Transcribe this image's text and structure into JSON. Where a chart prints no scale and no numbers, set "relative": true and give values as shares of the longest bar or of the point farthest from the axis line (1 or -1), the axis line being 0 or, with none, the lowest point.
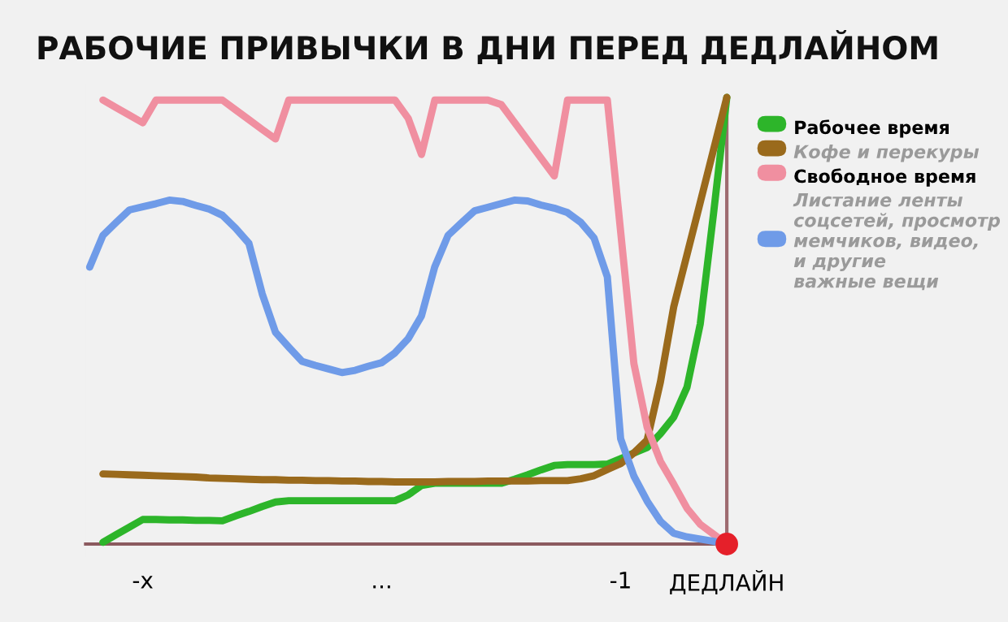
{
  "chart_data": {
    "type": "line",
    "title": "РАБОЧИЕ ПРИВЫЧКИ В ДНИ ПЕРЕД ДЕДЛАЙНОМ",
    "relative": true,
    "categories": [
      null,
      null,
      null,
      null,
      "-x",
      null,
      null,
      null,
      null,
      null,
      null,
      null,
      null,
      null,
      null,
      null,
      null,
      null,
      null,
      null,
      null,
      null,
      "...",
      null,
      null,
      null,
      null,
      null,
      null,
      null,
      null,
      null,
      null,
      null,
      null,
      null,
      null,
      null,
      null,
      null,
      "-1",
      null,
      null,
      null,
      null,
      null,
      null,
      null,
      "ДЕДЛАЙН"
    ],
    "ref_lines": [
      {
        "axis": "x",
        "value": "ДЕДЛАЙН",
        "label": null,
        "color": "#9e6b70"
      }
    ],
    "legend": "right",
    "grid": false,
    "marker": "none",
    "line_style": "solid",
    "series": [
      {
        "name": "Рабочее время",
        "color": "#2db52a",
        "values": [
          null,
          0.004,
          0.021,
          0.038,
          0.055,
          0.055,
          0.054,
          0.054,
          0.053,
          0.053,
          0.052,
          0.063,
          0.073,
          0.084,
          0.094,
          0.097,
          0.097,
          0.097,
          0.097,
          0.097,
          0.097,
          0.097,
          0.097,
          0.097,
          0.11,
          0.131,
          0.136,
          0.136,
          0.136,
          0.136,
          0.136,
          0.136,
          0.145,
          0.155,
          0.166,
          0.176,
          0.178,
          0.178,
          0.178,
          0.179,
          0.191,
          0.204,
          0.216,
          0.247,
          0.284,
          0.351,
          0.493,
          0.74,
          1.0
        ]
      },
      {
        "name": "Кофе и перекуры",
        "color": "#9a6a1c",
        "values": [
          null,
          0.157,
          0.156,
          0.155,
          0.154,
          0.153,
          0.152,
          0.151,
          0.15,
          0.148,
          0.147,
          0.146,
          0.145,
          0.144,
          0.144,
          0.143,
          0.143,
          0.142,
          0.142,
          0.141,
          0.141,
          0.14,
          0.14,
          0.139,
          0.139,
          0.139,
          0.139,
          0.14,
          0.14,
          0.14,
          0.141,
          0.141,
          0.141,
          0.141,
          0.142,
          0.142,
          0.142,
          0.146,
          0.153,
          0.167,
          0.18,
          0.204,
          0.233,
          0.363,
          0.531,
          0.648,
          0.765,
          0.883,
          1.0
        ]
      },
      {
        "name": "Свободное время",
        "color": "#f08fa0",
        "values": [
          null,
          0.994,
          0.977,
          0.96,
          0.943,
          0.994,
          0.994,
          0.994,
          0.994,
          0.994,
          0.994,
          0.972,
          0.95,
          0.928,
          0.907,
          0.994,
          0.994,
          0.994,
          0.994,
          0.994,
          0.994,
          0.994,
          0.994,
          0.994,
          0.953,
          0.872,
          0.994,
          0.994,
          0.994,
          0.994,
          0.994,
          0.984,
          0.944,
          0.904,
          0.864,
          0.824,
          0.994,
          0.994,
          0.994,
          0.994,
          0.7,
          0.404,
          0.261,
          0.185,
          0.134,
          0.08,
          0.044,
          0.022,
          0
        ]
      },
      {
        "name": "Листание ленты\nсоцсетей, просмотр\nмемчиков, видео,\nи другие\nважные вещи",
        "color": "#6f9be8",
        "values": [
          0.62,
          0.691,
          0.72,
          0.748,
          0.755,
          0.762,
          0.77,
          0.767,
          0.758,
          0.75,
          0.736,
          0.707,
          0.673,
          0.56,
          0.474,
          0.441,
          0.409,
          0.4,
          0.392,
          0.384,
          0.389,
          0.398,
          0.406,
          0.428,
          0.46,
          0.511,
          0.621,
          0.691,
          0.719,
          0.746,
          0.754,
          0.762,
          0.77,
          0.768,
          0.759,
          0.752,
          0.742,
          0.72,
          0.685,
          0.598,
          0.236,
          0.152,
          0.096,
          0.051,
          0.024,
          0.016,
          0.011,
          0.006,
          0
        ]
      }
    ]
  }
}
